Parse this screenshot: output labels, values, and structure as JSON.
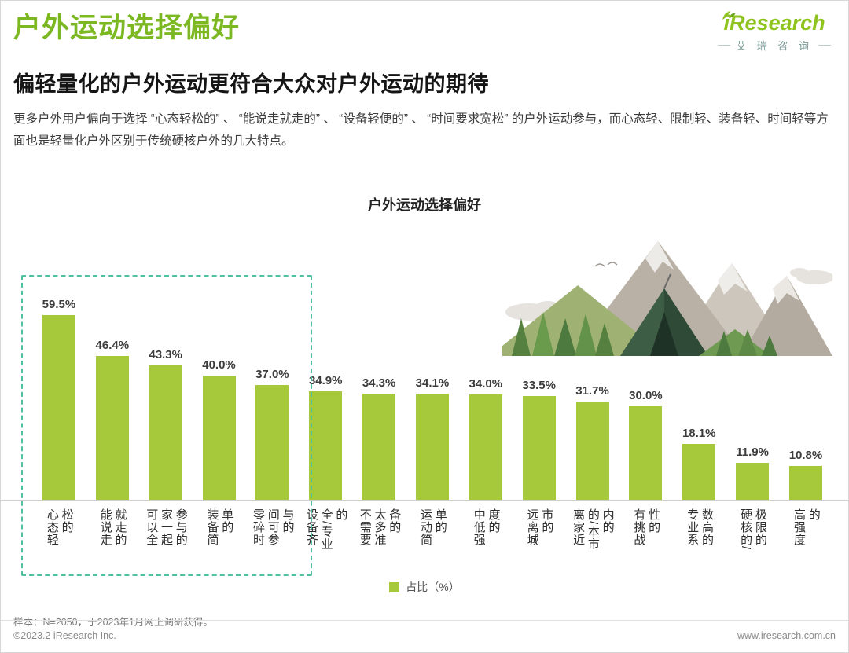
{
  "header": {
    "page_title": "户外运动选择偏好",
    "logo": {
      "brand": "iResearch",
      "brand_cn": "艾 瑞 咨 询"
    },
    "subtitle": "偏轻量化的户外运动更符合大众对户外运动的期待",
    "body_text": "更多户外用户偏向于选择 “心态轻松的” 、 “能说走就走的” 、 “设备轻便的” 、 “时间要求宽松” 的户外运动参与，而心态轻、限制轻、装备轻、时间轻等方面也是轻量化户外区别于传统硬核户外的几大特点。"
  },
  "chart_data": {
    "type": "bar",
    "title": "户外运动选择偏好",
    "categories": [
      "心态轻松的",
      "能说走就走的",
      "可以全家一起参与的",
      "装备简单的",
      "零碎时间可参与的",
      "设备齐全/专业的",
      "不需要太多准备的",
      "运动简单的",
      "中低强度的",
      "远离城市的",
      "离家近的/本市内的",
      "有挑战性的",
      "专业系数高的",
      "硬核的/极限的",
      "高强度的"
    ],
    "values": [
      59.5,
      46.4,
      43.3,
      40.0,
      37.0,
      34.9,
      34.3,
      34.1,
      34.0,
      33.5,
      31.7,
      30.0,
      18.1,
      11.9,
      10.8
    ],
    "unit": "%",
    "ylim": [
      0,
      65
    ],
    "grid": false,
    "legend_label": "占比（%）",
    "legend_position": "bottom",
    "bar_color": "#a5c93b",
    "highlight": {
      "first_n_categories": 5,
      "border_color": "#4fc0a0"
    }
  },
  "footer": {
    "sample_note": "样本：N=2050，于2023年1月网上调研获得。",
    "copyright": "©2023.2 iResearch Inc.",
    "website": "www.iresearch.com.cn"
  },
  "colors": {
    "accent_green": "#7cb821",
    "logo_green": "#8fc320",
    "axis_line": "#cfcfcf",
    "subtitle_text": "#151515"
  }
}
